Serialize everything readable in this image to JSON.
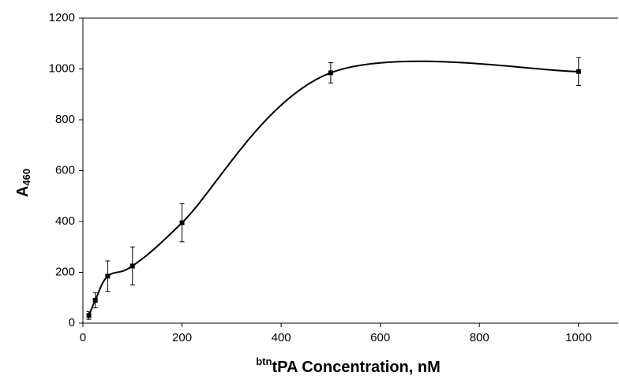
{
  "chart_data": {
    "type": "scatter",
    "x": [
      12,
      25,
      50,
      100,
      200,
      500,
      1000
    ],
    "values": [
      30,
      90,
      185,
      225,
      395,
      985,
      990
    ],
    "errors": [
      15,
      30,
      60,
      75,
      75,
      40,
      55
    ],
    "color": "#000000",
    "xlim": [
      0,
      1080
    ],
    "xticks": [
      0,
      200,
      400,
      600,
      800,
      1000
    ],
    "ylim": [
      0,
      1200
    ],
    "yticks": [
      0,
      200,
      400,
      600,
      800,
      1000,
      1200
    ],
    "xlabel_sup": "btn",
    "xlabel": "tPA Concentration, nM",
    "ylabel": "A",
    "ylabel_sub": "460"
  }
}
